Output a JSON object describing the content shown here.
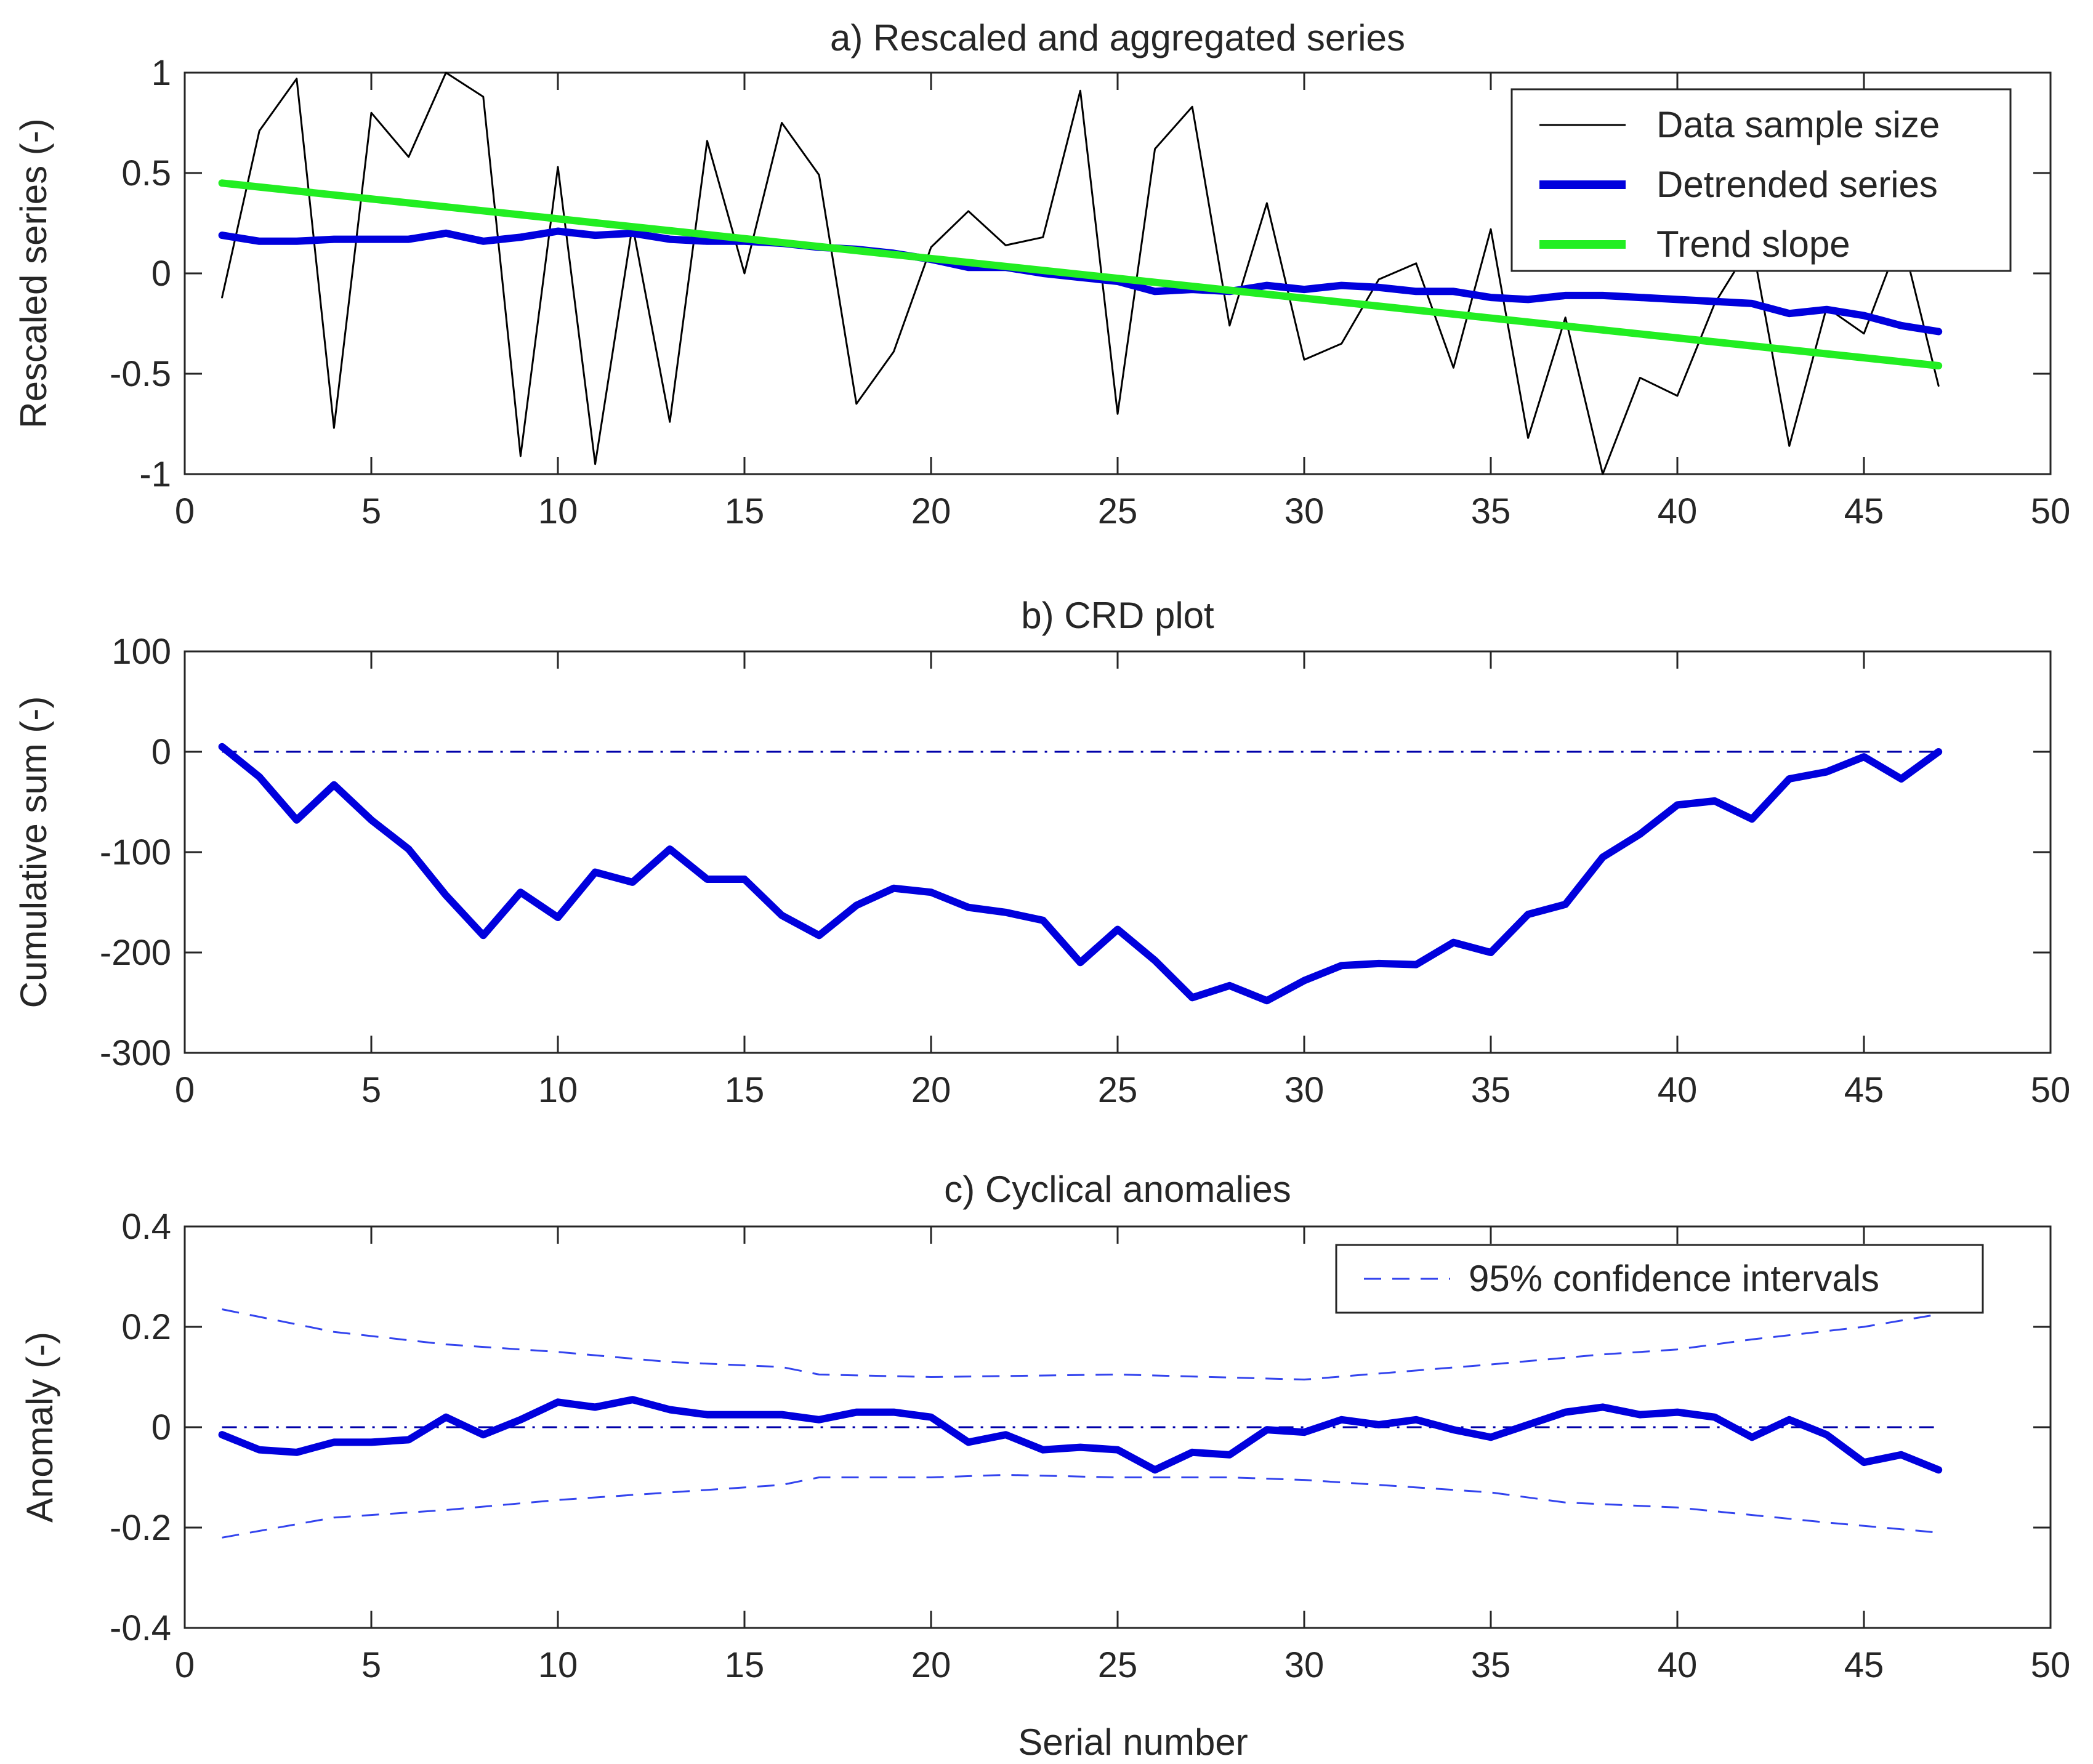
{
  "chart_data": [
    {
      "type": "line",
      "title": "a) Rescaled and aggregated series",
      "xlabel": "",
      "ylabel": "Rescaled series (-)",
      "xlim": [
        0,
        50
      ],
      "ylim": [
        -1,
        1
      ],
      "xticks": [
        0,
        5,
        10,
        15,
        20,
        25,
        30,
        35,
        40,
        45,
        50
      ],
      "yticks": [
        -1,
        -0.5,
        0,
        0.5,
        1
      ],
      "legend_position": "top-right",
      "series": [
        {
          "name": "Data sample size",
          "color": "#000000",
          "style": "solid",
          "width": "thin",
          "show_in_legend": true,
          "x": [
            1,
            2,
            3,
            4,
            5,
            6,
            7,
            8,
            9,
            10,
            11,
            12,
            13,
            14,
            15,
            16,
            17,
            18,
            19,
            20,
            21,
            22,
            23,
            24,
            25,
            26,
            27,
            28,
            29,
            30,
            31,
            32,
            33,
            34,
            35,
            36,
            37,
            38,
            39,
            40,
            41,
            42,
            43,
            44,
            45,
            46,
            47
          ],
          "values": [
            -0.12,
            0.71,
            0.97,
            -0.77,
            0.8,
            0.58,
            1.0,
            0.88,
            -0.91,
            0.53,
            -0.95,
            0.24,
            -0.74,
            0.66,
            0.0,
            0.75,
            0.49,
            -0.65,
            -0.39,
            0.13,
            0.31,
            0.14,
            0.18,
            0.91,
            -0.7,
            0.62,
            0.83,
            -0.26,
            0.35,
            -0.43,
            -0.35,
            -0.03,
            0.05,
            -0.47,
            0.22,
            -0.82,
            -0.22,
            -1.0,
            -0.52,
            -0.61,
            -0.15,
            0.15,
            -0.86,
            -0.17,
            -0.3,
            0.19,
            -0.56
          ]
        },
        {
          "name": "Detrended series",
          "color": "#0000dd",
          "style": "solid",
          "width": "thick",
          "show_in_legend": true,
          "x": [
            1,
            2,
            3,
            4,
            5,
            6,
            7,
            8,
            9,
            10,
            11,
            12,
            13,
            14,
            15,
            16,
            17,
            18,
            19,
            20,
            21,
            22,
            23,
            24,
            25,
            26,
            27,
            28,
            29,
            30,
            31,
            32,
            33,
            34,
            35,
            36,
            37,
            38,
            39,
            40,
            41,
            42,
            43,
            44,
            45,
            46,
            47
          ],
          "values": [
            0.19,
            0.16,
            0.16,
            0.17,
            0.17,
            0.17,
            0.2,
            0.16,
            0.18,
            0.21,
            0.19,
            0.2,
            0.17,
            0.16,
            0.16,
            0.15,
            0.13,
            0.12,
            0.1,
            0.07,
            0.03,
            0.03,
            0.0,
            -0.02,
            -0.04,
            -0.09,
            -0.08,
            -0.09,
            -0.06,
            -0.08,
            -0.06,
            -0.07,
            -0.09,
            -0.09,
            -0.12,
            -0.13,
            -0.11,
            -0.11,
            -0.12,
            -0.13,
            -0.14,
            -0.15,
            -0.2,
            -0.18,
            -0.21,
            -0.26,
            -0.29
          ]
        },
        {
          "name": "Trend slope",
          "color": "#22ee22",
          "style": "solid",
          "width": "thick",
          "show_in_legend": true,
          "x": [
            1,
            47
          ],
          "values": [
            0.45,
            -0.46
          ]
        }
      ]
    },
    {
      "type": "line",
      "title": "b) CRD plot",
      "xlabel": "",
      "ylabel": "Cumulative sum (-)",
      "xlim": [
        0,
        50
      ],
      "ylim": [
        -300,
        100
      ],
      "xticks": [
        0,
        5,
        10,
        15,
        20,
        25,
        30,
        35,
        40,
        45,
        50
      ],
      "yticks": [
        -300,
        -200,
        -100,
        0,
        100
      ],
      "series": [
        {
          "name": "Cumulative sum",
          "color": "#0000dd",
          "style": "solid",
          "width": "thick",
          "show_in_legend": false,
          "x": [
            1,
            2,
            3,
            4,
            5,
            6,
            7,
            8,
            9,
            10,
            11,
            12,
            13,
            14,
            15,
            16,
            17,
            18,
            19,
            20,
            21,
            22,
            23,
            24,
            25,
            26,
            27,
            28,
            29,
            30,
            31,
            32,
            33,
            34,
            35,
            36,
            37,
            38,
            39,
            40,
            41,
            42,
            43,
            44,
            45,
            46,
            47
          ],
          "values": [
            5,
            -25,
            -68,
            -33,
            -68,
            -97,
            -143,
            -183,
            -140,
            -165,
            -120,
            -130,
            -97,
            -127,
            -127,
            -163,
            -183,
            -153,
            -136,
            -140,
            -155,
            -160,
            -168,
            -210,
            -177,
            -208,
            -245,
            -233,
            -248,
            -228,
            -213,
            -211,
            -212,
            -190,
            -200,
            -162,
            -152,
            -105,
            -82,
            -53,
            -49,
            -67,
            -27,
            -20,
            -5,
            -27,
            0
          ]
        },
        {
          "name": "Zero reference",
          "color": "#0000aa",
          "style": "dashdot",
          "width": "thin",
          "show_in_legend": false,
          "x": [
            1,
            47
          ],
          "values": [
            0,
            0
          ]
        }
      ]
    },
    {
      "type": "line",
      "title": "c) Cyclical anomalies",
      "xlabel": "Serial number",
      "ylabel": "Anomaly (-)",
      "xlim": [
        0,
        50
      ],
      "ylim": [
        -0.4,
        0.4
      ],
      "xticks": [
        0,
        5,
        10,
        15,
        20,
        25,
        30,
        35,
        40,
        45,
        50
      ],
      "yticks": [
        -0.4,
        -0.2,
        0,
        0.2,
        0.4
      ],
      "legend_position": "top-right",
      "series": [
        {
          "name": "Anomaly",
          "color": "#0000dd",
          "style": "solid",
          "width": "thick",
          "show_in_legend": false,
          "x": [
            1,
            2,
            3,
            4,
            5,
            6,
            7,
            8,
            9,
            10,
            11,
            12,
            13,
            14,
            15,
            16,
            17,
            18,
            19,
            20,
            21,
            22,
            23,
            24,
            25,
            26,
            27,
            28,
            29,
            30,
            31,
            32,
            33,
            34,
            35,
            36,
            37,
            38,
            39,
            40,
            41,
            42,
            43,
            44,
            45,
            46,
            47
          ],
          "values": [
            -0.015,
            -0.045,
            -0.05,
            -0.03,
            -0.03,
            -0.025,
            0.02,
            -0.015,
            0.015,
            0.05,
            0.04,
            0.055,
            0.035,
            0.025,
            0.025,
            0.025,
            0.015,
            0.03,
            0.03,
            0.02,
            -0.03,
            -0.015,
            -0.045,
            -0.04,
            -0.045,
            -0.085,
            -0.05,
            -0.055,
            -0.005,
            -0.01,
            0.015,
            0.005,
            0.015,
            -0.005,
            -0.02,
            0.005,
            0.03,
            0.04,
            0.025,
            0.03,
            0.02,
            -0.02,
            0.015,
            -0.015,
            -0.07,
            -0.055,
            -0.085
          ]
        },
        {
          "name": "95% confidence intervals",
          "color": "#3344ee",
          "style": "dashed",
          "width": "thin",
          "show_in_legend": true,
          "x": [
            1,
            4,
            7,
            10,
            13,
            16,
            17,
            20,
            25,
            30,
            35,
            38,
            40,
            42,
            45,
            47
          ],
          "values": [
            0.235,
            0.19,
            0.165,
            0.15,
            0.13,
            0.12,
            0.105,
            0.1,
            0.105,
            0.095,
            0.125,
            0.145,
            0.155,
            0.175,
            0.2,
            0.225
          ]
        },
        {
          "name": "95% confidence intervals (lower)",
          "color": "#3344ee",
          "style": "dashed",
          "width": "thin",
          "show_in_legend": false,
          "x": [
            1,
            4,
            7,
            10,
            13,
            16,
            17,
            20,
            22,
            25,
            28,
            30,
            32,
            35,
            37,
            40,
            42,
            44,
            47
          ],
          "values": [
            -0.22,
            -0.18,
            -0.165,
            -0.145,
            -0.13,
            -0.115,
            -0.1,
            -0.1,
            -0.095,
            -0.1,
            -0.1,
            -0.105,
            -0.115,
            -0.13,
            -0.15,
            -0.16,
            -0.175,
            -0.19,
            -0.21
          ]
        },
        {
          "name": "Zero reference",
          "color": "#0000aa",
          "style": "dashdot",
          "width": "thin",
          "show_in_legend": false,
          "x": [
            1,
            47
          ],
          "values": [
            0,
            0
          ]
        }
      ]
    }
  ]
}
